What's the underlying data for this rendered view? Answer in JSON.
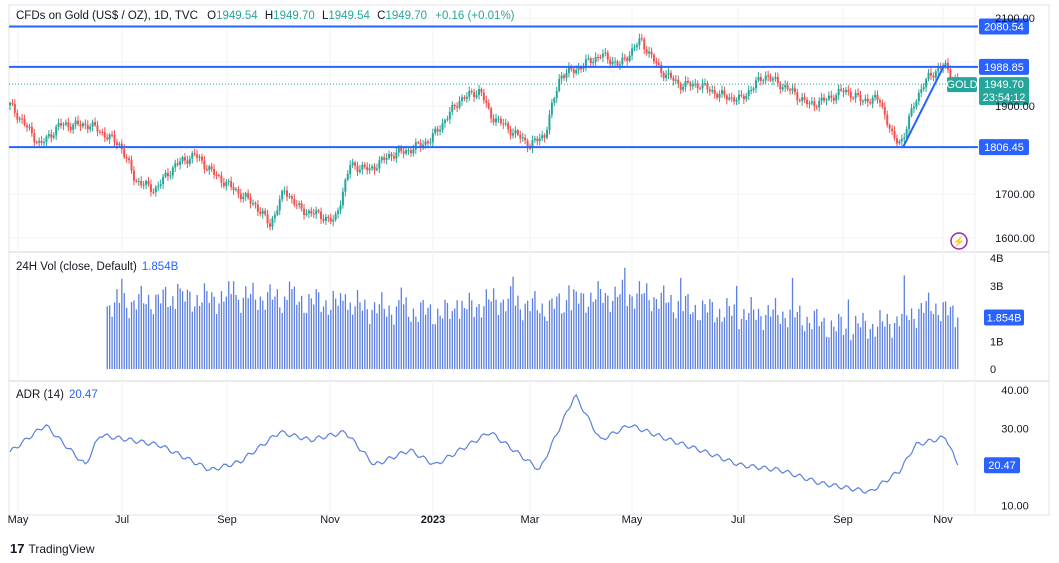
{
  "header": {
    "symbol": "CFDs on Gold (US$ / OZ), 1D, TVC",
    "o_label": "O",
    "o": "1949.54",
    "h_label": "H",
    "h": "1949.70",
    "l_label": "L",
    "l": "1949.54",
    "c_label": "C",
    "c": "1949.70",
    "change": "+0.16 (+0.01%)"
  },
  "volume_legend": {
    "name": "24H Vol (close, Default)",
    "value": "1.854B"
  },
  "adr_legend": {
    "name": "ADR (14)",
    "value": "20.47"
  },
  "brand": "TradingView",
  "colors": {
    "up": "#26a69a",
    "down": "#ef5350",
    "line": "#2962ff",
    "volume": "#5b7fde",
    "adr": "#5b7fde"
  },
  "chart_data": [
    {
      "type": "candlestick",
      "title": "CFDs on Gold (US$ / OZ), 1D, TVC",
      "x_unit": "weeks since May 2022",
      "ylim": [
        1600,
        2100
      ],
      "y_ticks": [
        "2100.00",
        "1900.00",
        "1700.00",
        "1600.00"
      ],
      "x_ticks": [
        "May",
        "Jul",
        "Sep",
        "Nov",
        "2023",
        "Mar",
        "May",
        "Jul",
        "Sep",
        "Nov"
      ],
      "close_anchors": [
        [
          0,
          1902
        ],
        [
          2.5,
          1811
        ],
        [
          4.1,
          1857
        ],
        [
          6.6,
          1857
        ],
        [
          9.1,
          1811
        ],
        [
          10.3,
          1732
        ],
        [
          11.9,
          1709
        ],
        [
          13.6,
          1766
        ],
        [
          15.2,
          1789
        ],
        [
          16.9,
          1743
        ],
        [
          18.5,
          1709
        ],
        [
          20.2,
          1675
        ],
        [
          21.4,
          1630
        ],
        [
          22.6,
          1709
        ],
        [
          23.9,
          1664
        ],
        [
          25.5,
          1652
        ],
        [
          26.7,
          1636
        ],
        [
          28,
          1766
        ],
        [
          29.6,
          1755
        ],
        [
          31.3,
          1789
        ],
        [
          32.9,
          1800
        ],
        [
          34.6,
          1823
        ],
        [
          35.8,
          1868
        ],
        [
          37,
          1914
        ],
        [
          38.7,
          1936
        ],
        [
          39.5,
          1880
        ],
        [
          41.2,
          1845
        ],
        [
          42.8,
          1811
        ],
        [
          44,
          1834
        ],
        [
          45.3,
          1970
        ],
        [
          46.5,
          1982
        ],
        [
          48.6,
          2016
        ],
        [
          50.2,
          1993
        ],
        [
          51.9,
          2050
        ],
        [
          53.5,
          1982
        ],
        [
          55.1,
          1948
        ],
        [
          56.8,
          1948
        ],
        [
          58.4,
          1925
        ],
        [
          60.1,
          1914
        ],
        [
          62.1,
          1970
        ],
        [
          64.2,
          1936
        ],
        [
          65.8,
          1902
        ],
        [
          67.1,
          1914
        ],
        [
          68.7,
          1936
        ],
        [
          70,
          1914
        ],
        [
          71.6,
          1914
        ],
        [
          72.7,
          1823
        ],
        [
          73.5,
          1823
        ],
        [
          74.5,
          1914
        ],
        [
          75.7,
          1970
        ],
        [
          76.9,
          1993
        ],
        [
          78,
          1949.7
        ]
      ],
      "horizontal_levels": [
        "2080.54",
        "1988.85",
        "1806.45"
      ],
      "trendline": [
        [
          73.5,
          1806.45
        ],
        [
          76.9,
          1993
        ]
      ],
      "last_price": "1949.70",
      "countdown": "23:54:12",
      "symbol_tag": "GOLD"
    },
    {
      "type": "bar",
      "title": "24H Vol (close, Default)",
      "ylim": [
        0,
        4
      ],
      "y_unit": "B",
      "y_ticks": [
        "4B",
        "3B",
        "1B",
        "0"
      ],
      "volume_anchors": [
        [
          7.9,
          2.3
        ],
        [
          12,
          2.5
        ],
        [
          20,
          2.6
        ],
        [
          26,
          2.4
        ],
        [
          30,
          2.2
        ],
        [
          36,
          2.0
        ],
        [
          40,
          2.5
        ],
        [
          44,
          2.2
        ],
        [
          48,
          2.6
        ],
        [
          52,
          2.7
        ],
        [
          56,
          2.2
        ],
        [
          60,
          2.0
        ],
        [
          64,
          2.0
        ],
        [
          68,
          1.5
        ],
        [
          72,
          1.6
        ],
        [
          76,
          2.3
        ],
        [
          78,
          1.854
        ]
      ],
      "last_value": "1.854B"
    },
    {
      "type": "line",
      "title": "ADR (14)",
      "ylim": [
        10,
        40
      ],
      "y_ticks": [
        "40.00",
        "30.00",
        "10.00"
      ],
      "adr_anchors": [
        [
          0,
          23.9
        ],
        [
          2.9,
          30.9
        ],
        [
          6.2,
          20.5
        ],
        [
          7.4,
          28.3
        ],
        [
          9.9,
          27
        ],
        [
          12.3,
          25.7
        ],
        [
          16.5,
          19.2
        ],
        [
          18.9,
          21.3
        ],
        [
          22.2,
          29.1
        ],
        [
          24.7,
          27
        ],
        [
          27.6,
          29.1
        ],
        [
          30.0,
          20.5
        ],
        [
          32.9,
          24.4
        ],
        [
          35,
          20.5
        ],
        [
          39.5,
          29.1
        ],
        [
          42,
          23.1
        ],
        [
          43.6,
          19.2
        ],
        [
          46.5,
          38.7
        ],
        [
          48.6,
          27
        ],
        [
          51,
          30.9
        ],
        [
          54.3,
          27
        ],
        [
          56.8,
          24.4
        ],
        [
          60.1,
          20.5
        ],
        [
          63.4,
          19.2
        ],
        [
          66.7,
          15.8
        ],
        [
          70.8,
          13.5
        ],
        [
          73.3,
          19.2
        ],
        [
          74.5,
          25.7
        ],
        [
          77,
          27.8
        ],
        [
          78,
          20.47
        ]
      ],
      "last_value": "20.47"
    }
  ]
}
